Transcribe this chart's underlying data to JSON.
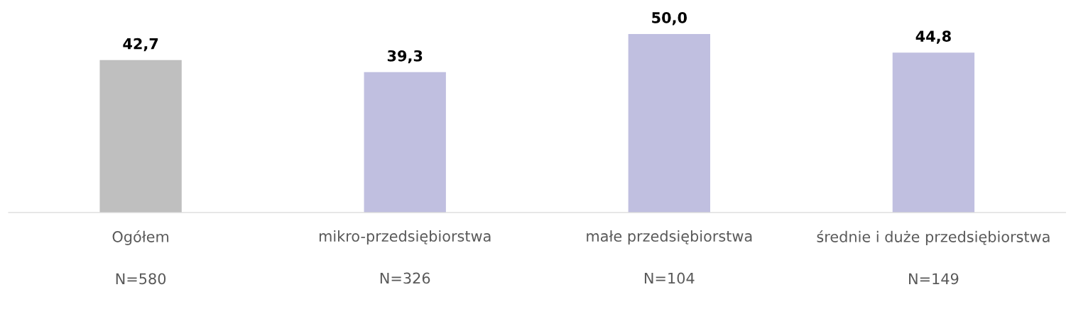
{
  "chart_data": {
    "type": "bar",
    "categories": [
      "Ogółem\n\nN=580",
      "mikro-przedsiębiorstwa\n\nN=326",
      "małe przedsiębiorstwa\n\nN=104",
      "średnie i duże przedsiębiorstwa\n\nN=149"
    ],
    "values": [
      42.7,
      39.3,
      50.0,
      44.8
    ],
    "colors": [
      "#bfbfbf",
      "#c0bfe0",
      "#c0bfe0",
      "#c0bfe0"
    ],
    "value_labels": [
      "42,7",
      "39,3",
      "50,0",
      "44,8"
    ],
    "grid": false,
    "legend": false
  }
}
